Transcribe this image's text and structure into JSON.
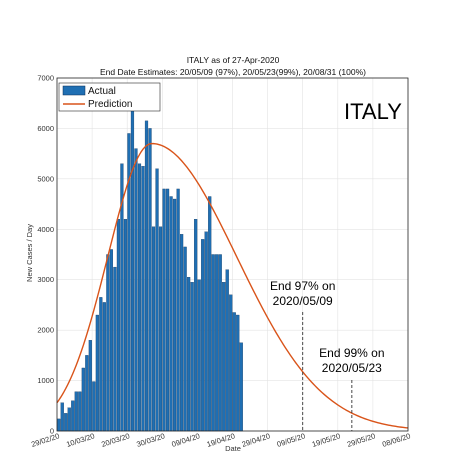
{
  "chart_data": {
    "type": "bar",
    "title": "ITALY as of 27-Apr-2020",
    "subtitle": "End Date Estimates: 20/05/09 (97%), 20/05/23(99%), 20/08/31 (100%)",
    "xlabel": "Date",
    "ylabel": "New Cases / Day",
    "ylim": [
      0,
      7000
    ],
    "yticks": [
      0,
      1000,
      2000,
      3000,
      4000,
      5000,
      6000,
      7000
    ],
    "xlim": [
      "2020-02-29",
      "2020-06-08"
    ],
    "xticks": [
      "29/02/20",
      "10/03/20",
      "20/03/20",
      "30/03/20",
      "09/04/20",
      "19/04/20",
      "29/04/20",
      "09/05/20",
      "19/05/20",
      "29/05/20",
      "08/06/20"
    ],
    "grid": true,
    "legend_position": "top-left",
    "country_label": "ITALY",
    "colors": {
      "actual": "#1f6fb3",
      "prediction": "#d9541a"
    },
    "series": [
      {
        "name": "Actual",
        "type": "bar",
        "start_date": "2020-02-29",
        "values": [
          240,
          560,
          350,
          460,
          600,
          780,
          780,
          1250,
          1500,
          1800,
          980,
          2300,
          2650,
          2550,
          3500,
          3600,
          3250,
          4200,
          5300,
          4200,
          5900,
          6550,
          5600,
          5300,
          5250,
          6150,
          6000,
          4050,
          5200,
          4050,
          4800,
          4800,
          4650,
          4600,
          4800,
          3900,
          3650,
          3050,
          2950,
          4200,
          3000,
          3800,
          3950,
          4650,
          3500,
          3500,
          3500,
          2950,
          3200,
          2700,
          2350,
          2300,
          1750
        ]
      },
      {
        "name": "Prediction",
        "type": "line",
        "peak_date": "2020-03-27",
        "peak_value": 5700,
        "start_value": 560,
        "end_value": 60
      }
    ],
    "annotations": [
      {
        "date": "2020-05-09",
        "line1": "End 97% on",
        "line2": "2020/05/09"
      },
      {
        "date": "2020-05-23",
        "line1": "End 99% on",
        "line2": "2020/05/23"
      }
    ]
  }
}
